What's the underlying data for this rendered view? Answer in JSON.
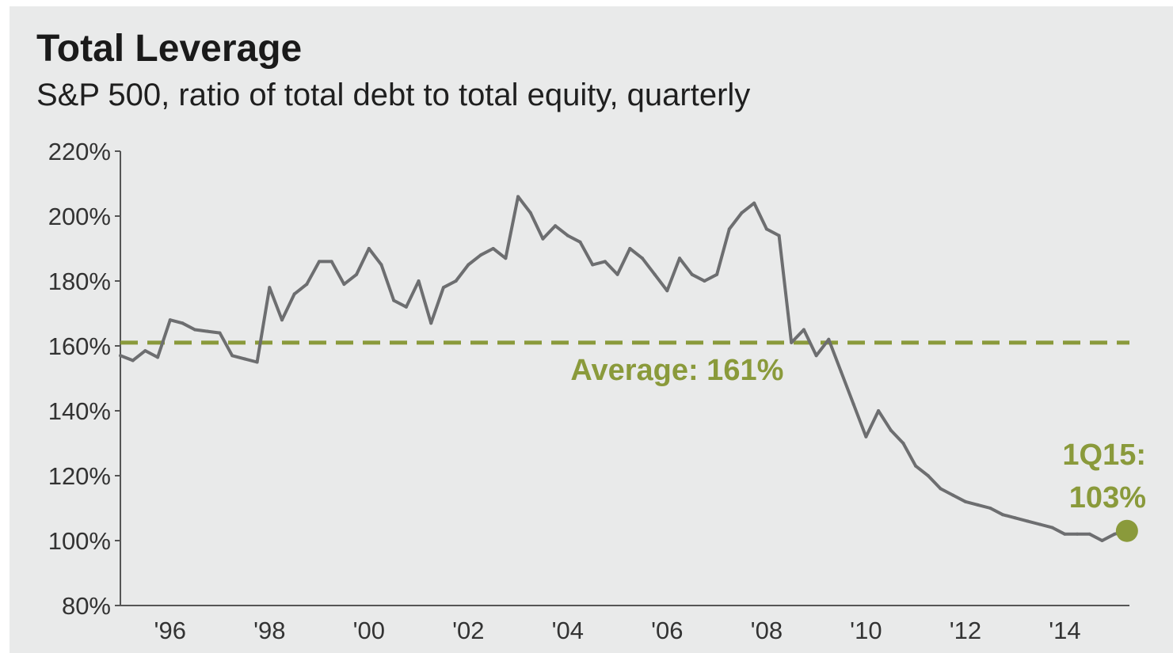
{
  "colors": {
    "background": "#e9eaea",
    "series": "#6d6e70",
    "accent": "#8a9a3b",
    "axis": "#555555"
  },
  "chart_data": {
    "type": "line",
    "title": "Total Leverage",
    "subtitle": "S&P 500, ratio of total debt to total equity, quarterly",
    "xlabel": "",
    "ylabel": "",
    "ylim": [
      80,
      220
    ],
    "xlim": [
      1995.0,
      2015.3
    ],
    "yticks": [
      "80%",
      "100%",
      "120%",
      "140%",
      "160%",
      "180%",
      "200%",
      "220%"
    ],
    "yticks_values": [
      80,
      100,
      120,
      140,
      160,
      180,
      200,
      220
    ],
    "xticks": [
      "'96",
      "'98",
      "'00",
      "'02",
      "'04",
      "'06",
      "'08",
      "'10",
      "'12",
      "'14"
    ],
    "xticks_values": [
      1996,
      1998,
      2000,
      2002,
      2004,
      2006,
      2008,
      2010,
      2012,
      2014
    ],
    "grid": false,
    "series": [
      {
        "x": [
          1995.0,
          1995.25,
          1995.5,
          1995.75,
          1996.0,
          1996.25,
          1996.5,
          1996.75,
          1997.0,
          1997.25,
          1997.5,
          1997.75,
          1998.0,
          1998.25,
          1998.5,
          1998.75,
          1999.0,
          1999.25,
          1999.5,
          1999.75,
          2000.0,
          2000.25,
          2000.5,
          2000.75,
          2001.0,
          2001.25,
          2001.5,
          2001.75,
          2002.0,
          2002.25,
          2002.5,
          2002.75,
          2003.0,
          2003.25,
          2003.5,
          2003.75,
          2004.0,
          2004.25,
          2004.5,
          2004.75,
          2005.0,
          2005.25,
          2005.5,
          2005.75,
          2006.0,
          2006.25,
          2006.5,
          2006.75,
          2007.0,
          2007.25,
          2007.5,
          2007.75,
          2008.0,
          2008.25,
          2008.5,
          2008.75,
          2009.0,
          2009.25,
          2009.5,
          2009.75,
          2010.0,
          2010.25,
          2010.5,
          2010.75,
          2011.0,
          2011.25,
          2011.5,
          2011.75,
          2012.0,
          2012.25,
          2012.5,
          2012.75,
          2013.0,
          2013.25,
          2013.5,
          2013.75,
          2014.0,
          2014.25,
          2014.5,
          2014.75,
          2015.0,
          2015.25
        ],
        "values": [
          157,
          155.5,
          158.5,
          156.5,
          168,
          167,
          165,
          164.5,
          164,
          157,
          156,
          155,
          178,
          168,
          176,
          179,
          186,
          186,
          179,
          182,
          190,
          185,
          174,
          172,
          180,
          167,
          178,
          180,
          185,
          188,
          190,
          187,
          206,
          201,
          193,
          197,
          194,
          192,
          185,
          186,
          182,
          190,
          187,
          182,
          177,
          187,
          182,
          180,
          182,
          196,
          201,
          204,
          196,
          194,
          161,
          165,
          157,
          162,
          152,
          142,
          132,
          140,
          134,
          130,
          123,
          120,
          116,
          114,
          112,
          111,
          110,
          108,
          107,
          106,
          105,
          104,
          102,
          102,
          102,
          100,
          102,
          103
        ]
      }
    ],
    "average": {
      "value": 161,
      "label": "Average: 161%"
    },
    "endpoint": {
      "x": 2015.25,
      "value": 103,
      "label_line1": "1Q15:",
      "label_line2": "103%"
    }
  }
}
